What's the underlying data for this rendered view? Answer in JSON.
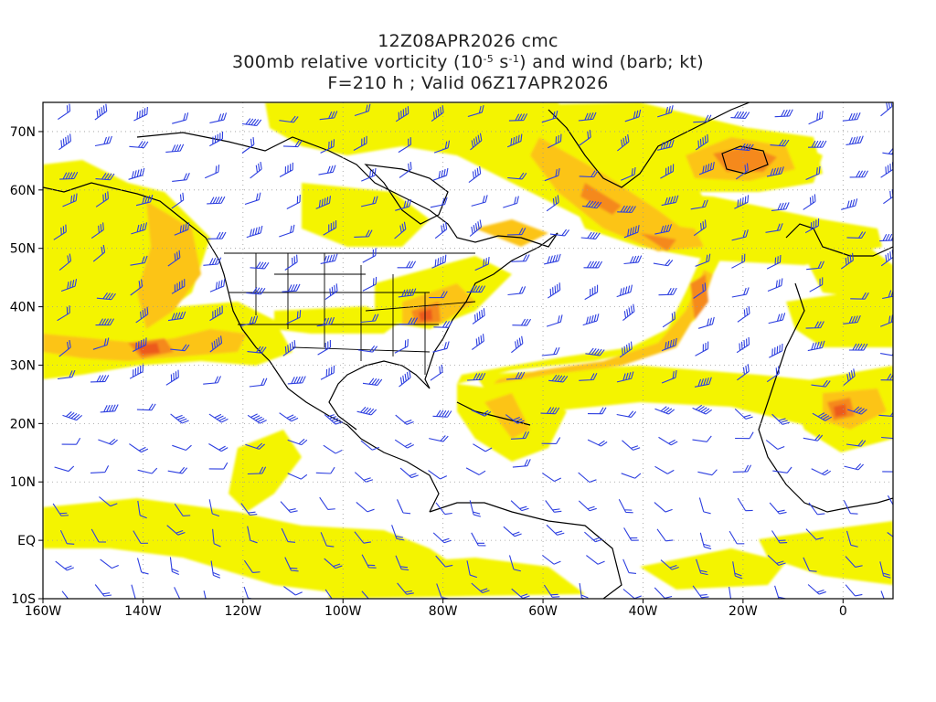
{
  "header": {
    "title_line1": "12Z08APR2026 cmc",
    "title_line2_pre": "300mb relative vorticity (10",
    "title_line2_exp1": "-5",
    "title_line2_mid": " s",
    "title_line2_exp2": "-1",
    "title_line2_post": ") and wind (barb; kt)",
    "title_line3": "F=210 h ; Valid 06Z17APR2026"
  },
  "map": {
    "lon_range": [
      -160,
      10
    ],
    "lat_range": [
      -10,
      75
    ],
    "y_tick_labels": [
      "70N",
      "60N",
      "50N",
      "40N",
      "30N",
      "20N",
      "10N",
      "EQ",
      "10S"
    ],
    "x_tick_labels": [
      "160W",
      "140W",
      "120W",
      "100W",
      "80W",
      "60W",
      "40W",
      "20W",
      "0"
    ],
    "grid": "dotted",
    "colors": {
      "vort_low": "#f4f400",
      "vort_mid": "#fcc419",
      "vort_high": "#f5891c",
      "vort_max": "#ec5a1d",
      "barb": "#2d3fe0",
      "coast": "#000000"
    }
  }
}
